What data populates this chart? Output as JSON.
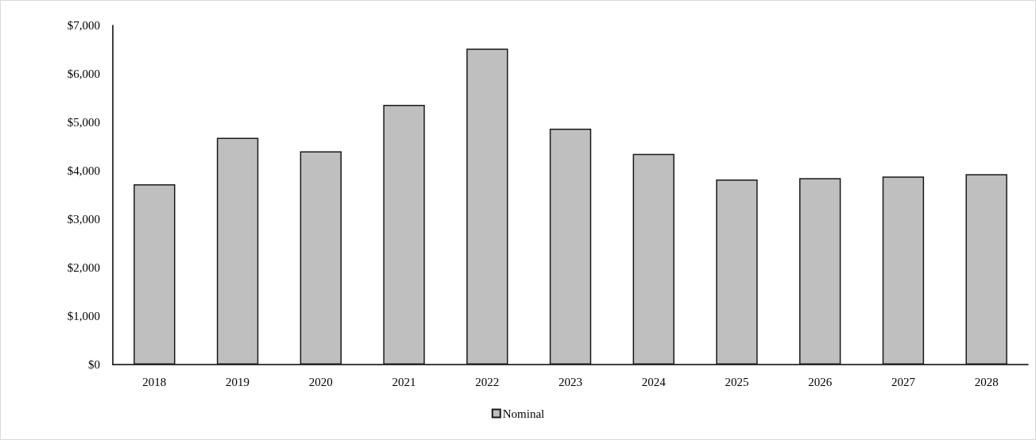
{
  "chart_data": {
    "type": "bar",
    "categories": [
      "2018",
      "2019",
      "2020",
      "2021",
      "2022",
      "2023",
      "2024",
      "2025",
      "2026",
      "2027",
      "2028"
    ],
    "series": [
      {
        "name": "Nominal",
        "color": "#bfbfbf",
        "values": [
          3720,
          4680,
          4400,
          5360,
          6520,
          4870,
          4350,
          3820,
          3850,
          3880,
          3930
        ]
      }
    ],
    "ylim": [
      0,
      7000
    ],
    "yticks": [
      {
        "value": 0,
        "label": "$0"
      },
      {
        "value": 1000,
        "label": "$1,000"
      },
      {
        "value": 2000,
        "label": "$2,000"
      },
      {
        "value": 3000,
        "label": "$3,000"
      },
      {
        "value": 4000,
        "label": "$4,000"
      },
      {
        "value": 5000,
        "label": "$5,000"
      },
      {
        "value": 6000,
        "label": "$6,000"
      },
      {
        "value": 7000,
        "label": "$7,000"
      }
    ],
    "legend": "bottom"
  }
}
